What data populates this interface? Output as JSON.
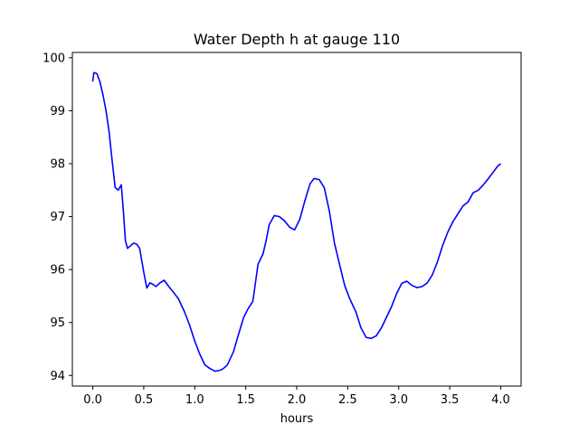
{
  "chart_data": {
    "type": "line",
    "title": "Water Depth h at gauge 110",
    "xlabel": "hours",
    "ylabel": "",
    "xlim": [
      -0.2,
      4.2
    ],
    "ylim": [
      93.8,
      100.1
    ],
    "xticks": [
      0.0,
      0.5,
      1.0,
      1.5,
      2.0,
      2.5,
      3.0,
      3.5,
      4.0
    ],
    "xtick_labels": [
      "0.0",
      "0.5",
      "1.0",
      "1.5",
      "2.0",
      "2.5",
      "3.0",
      "3.5",
      "4.0"
    ],
    "yticks": [
      94,
      95,
      96,
      97,
      98,
      99,
      100
    ],
    "ytick_labels": [
      "94",
      "95",
      "96",
      "97",
      "98",
      "99",
      "100"
    ],
    "grid": false,
    "series": [
      {
        "color": "#0000ff",
        "x": [
          0.0,
          0.01,
          0.04,
          0.07,
          0.1,
          0.13,
          0.16,
          0.19,
          0.22,
          0.25,
          0.28,
          0.3,
          0.32,
          0.34,
          0.37,
          0.4,
          0.43,
          0.46,
          0.5,
          0.53,
          0.56,
          0.59,
          0.62,
          0.66,
          0.7,
          0.73,
          0.77,
          0.8,
          0.84,
          0.9,
          0.95,
          1.0,
          1.05,
          1.1,
          1.15,
          1.2,
          1.25,
          1.28,
          1.32,
          1.38,
          1.43,
          1.48,
          1.52,
          1.57,
          1.62,
          1.67,
          1.7,
          1.73,
          1.78,
          1.83,
          1.88,
          1.93,
          1.98,
          2.03,
          2.08,
          2.13,
          2.17,
          2.22,
          2.27,
          2.32,
          2.37,
          2.42,
          2.47,
          2.52,
          2.58,
          2.63,
          2.68,
          2.73,
          2.78,
          2.83,
          2.88,
          2.93,
          2.98,
          3.03,
          3.08,
          3.13,
          3.18,
          3.23,
          3.28,
          3.33,
          3.38,
          3.43,
          3.48,
          3.53,
          3.58,
          3.63,
          3.68,
          3.73,
          3.78,
          3.83,
          3.88,
          3.93,
          3.97,
          4.0
        ],
        "y": [
          99.55,
          99.72,
          99.7,
          99.55,
          99.3,
          99.0,
          98.6,
          98.05,
          97.55,
          97.5,
          97.6,
          97.1,
          96.55,
          96.4,
          96.45,
          96.5,
          96.48,
          96.4,
          95.95,
          95.65,
          95.75,
          95.72,
          95.68,
          95.75,
          95.8,
          95.72,
          95.62,
          95.55,
          95.45,
          95.2,
          94.95,
          94.65,
          94.4,
          94.2,
          94.13,
          94.08,
          94.1,
          94.13,
          94.2,
          94.45,
          94.78,
          95.1,
          95.25,
          95.4,
          96.1,
          96.3,
          96.55,
          96.85,
          97.02,
          97.0,
          96.92,
          96.8,
          96.75,
          96.95,
          97.3,
          97.62,
          97.72,
          97.7,
          97.55,
          97.1,
          96.5,
          96.1,
          95.7,
          95.45,
          95.2,
          94.9,
          94.72,
          94.7,
          94.75,
          94.9,
          95.1,
          95.3,
          95.55,
          95.74,
          95.78,
          95.7,
          95.66,
          95.68,
          95.75,
          95.9,
          96.15,
          96.45,
          96.7,
          96.9,
          97.05,
          97.2,
          97.28,
          97.45,
          97.5,
          97.6,
          97.72,
          97.85,
          97.95,
          98.0
        ]
      }
    ]
  }
}
